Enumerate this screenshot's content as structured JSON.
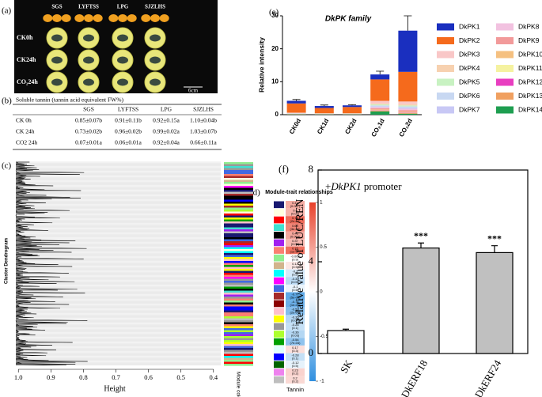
{
  "panel_labels": [
    "(a)",
    "(b)",
    "(c)",
    "(d)",
    "(e)",
    "(f)"
  ],
  "photo": {
    "columns": [
      "SGS",
      "LYFTSS",
      "LPG",
      "SJZLHS"
    ],
    "rows": [
      "CK0h",
      "CK24h",
      "CO₂24h"
    ],
    "scale": "6cm"
  },
  "table": {
    "title": "Soluble tannin (tannin acid equivalent FW%)",
    "columns": [
      "SGS",
      "LYFTSS",
      "LPG",
      "SJZLHS"
    ],
    "rows": [
      {
        "label": "CK 0h",
        "cells": [
          "0.85±0.07b",
          "0.91±0.11b",
          "0.92±0.15a",
          "1.10±0.04b"
        ]
      },
      {
        "label": "CK 24h",
        "cells": [
          "0.73±0.02b",
          "0.96±0.02b",
          "0.99±0.02a",
          "1.03±0.07b"
        ]
      },
      {
        "label": "CO2 24h",
        "cells": [
          "0.07±0.01a",
          "0.06±0.01a",
          "0.92±0.04a",
          "0.66±0.11a"
        ]
      }
    ]
  },
  "dendrogram": {
    "ylabel": "Cluster Dendrogram",
    "xlabel": "Height",
    "xlim": [
      1.02,
      0.38
    ],
    "xticks": [
      {
        "value": 1,
        "label": "1.0"
      },
      0.9,
      0.8,
      0.7,
      0.6,
      0.5,
      0.4
    ],
    "colors_label": "Module colours"
  },
  "chart_data": [
    {
      "type": "heatmap",
      "title": "Module-trait relationships",
      "xlabel": "Tannin",
      "row_colors": [
        "#191970",
        "#ffffe0",
        "#ff0000",
        "#40e0d0",
        "#000000",
        "#a020f0",
        "#fa8072",
        "#90ee90",
        "#d2b48c",
        "#00ffff",
        "#ff00ff",
        "#4169e1",
        "#a52a2a",
        "#8b0000",
        "#ffc0cb",
        "#ffff00",
        "#999999",
        "#adff2f",
        "#00a000",
        "#e0ffff",
        "#0000ff",
        "#006400",
        "#ee82ee",
        "#bebebe"
      ],
      "values": [
        0.44,
        0.4,
        0.78,
        0.64,
        0.46,
        0.37,
        0.75,
        -0.002,
        0.12,
        -0.2,
        -0.33,
        -0.1,
        -0.77,
        -0.71,
        -0.59,
        -0.35,
        -0.28,
        -0.36,
        -0.54,
        0.17,
        -0.28,
        -0.12,
        0.23,
        0.2
      ],
      "p_labels": [
        "(0.007)",
        "(0.02)",
        "(2e-08)",
        "(3e-05)",
        "(0.004)",
        "(0.03)",
        "(1e-07)",
        "(0.9)",
        "(0.5)",
        "(0.2)",
        "(0.05)",
        "(0.6)",
        "(5e-08)",
        "(1e-06)",
        "(2e-04)",
        "(0.04)",
        "(0.1)",
        "(0.03)",
        "(7e-04)",
        "(0.3)",
        "(0.1)",
        "(0.5)",
        "(0.2)",
        "(0.2)"
      ],
      "clim": [
        -1,
        1
      ],
      "cticks": [
        1,
        0.5,
        0,
        -0.5,
        -1
      ]
    },
    {
      "type": "stacked_bar",
      "title": "DkPK family",
      "ylabel": "Relative intensity",
      "categories": [
        "CK0d",
        "CK1d",
        "CK2d",
        "CO₂1d",
        "CO₂2d"
      ],
      "series": [
        {
          "name": "DkPK1",
          "color": "#1a2fbf",
          "values": [
            0.8,
            0.6,
            0.5,
            1.5,
            12.5
          ]
        },
        {
          "name": "DkPK2",
          "color": "#f56a1c",
          "values": [
            2.8,
            1.6,
            1.9,
            6.5,
            9
          ]
        },
        {
          "name": "DkPK3",
          "color": "#f9c7c7",
          "values": [
            0.1,
            0.05,
            0.05,
            0.8,
            0.8
          ]
        },
        {
          "name": "DkPK4",
          "color": "#f7d1b0",
          "values": [
            0.05,
            0.05,
            0.05,
            0.3,
            0.4
          ]
        },
        {
          "name": "DkPK5",
          "color": "#c8f2c2",
          "values": [
            0.05,
            0.03,
            0.03,
            0.3,
            0.3
          ]
        },
        {
          "name": "DkPK6",
          "color": "#c8d8f2",
          "values": [
            0.05,
            0.03,
            0.03,
            0.3,
            0.4
          ]
        },
        {
          "name": "DkPK7",
          "color": "#c8c8f5",
          "values": [
            0.05,
            0.03,
            0.03,
            0.2,
            0.3
          ]
        },
        {
          "name": "DkPK8",
          "color": "#f2c2e0",
          "values": [
            0.05,
            0.03,
            0.03,
            0.3,
            0.4
          ]
        },
        {
          "name": "DkPK9",
          "color": "#f29a9a",
          "values": [
            0.05,
            0.03,
            0.03,
            0.4,
            0.5
          ]
        },
        {
          "name": "DkPK10",
          "color": "#f5c080",
          "values": [
            0.05,
            0.02,
            0.02,
            0.2,
            0.2
          ]
        },
        {
          "name": "DkPK11",
          "color": "#f5f2a0",
          "values": [
            0.02,
            0.02,
            0.02,
            0.1,
            0.1
          ]
        },
        {
          "name": "DkPK12",
          "color": "#e83ec0",
          "values": [
            0.02,
            0.02,
            0.02,
            0.1,
            0.1
          ]
        },
        {
          "name": "DkPK13",
          "color": "#f0a060",
          "values": [
            0.02,
            0.02,
            0.02,
            0.2,
            0.2
          ]
        },
        {
          "name": "DkPK14",
          "color": "#1e9e50",
          "values": [
            0.1,
            0.1,
            0.1,
            1,
            0.3
          ]
        }
      ],
      "errors": [
        0.4,
        0.3,
        0.2,
        1,
        4.5
      ],
      "ylim": [
        0,
        30
      ],
      "yticks": [
        0,
        10,
        20,
        30
      ]
    },
    {
      "type": "bar",
      "annotation": [
        "+",
        "DkPK1",
        " promoter"
      ],
      "ylabel": "Relative value of LUC/REN",
      "categories": [
        "SK",
        "DkERF18",
        "DkERF24"
      ],
      "values": [
        1,
        4.6,
        4.4
      ],
      "errors": [
        0.06,
        0.22,
        0.3
      ],
      "significance": [
        null,
        "***",
        "***"
      ],
      "colors": [
        "#ffffff",
        "#c0c0c0",
        "#c0c0c0"
      ],
      "ylim": [
        0,
        8
      ],
      "yticks": [
        0,
        4,
        8
      ]
    }
  ]
}
